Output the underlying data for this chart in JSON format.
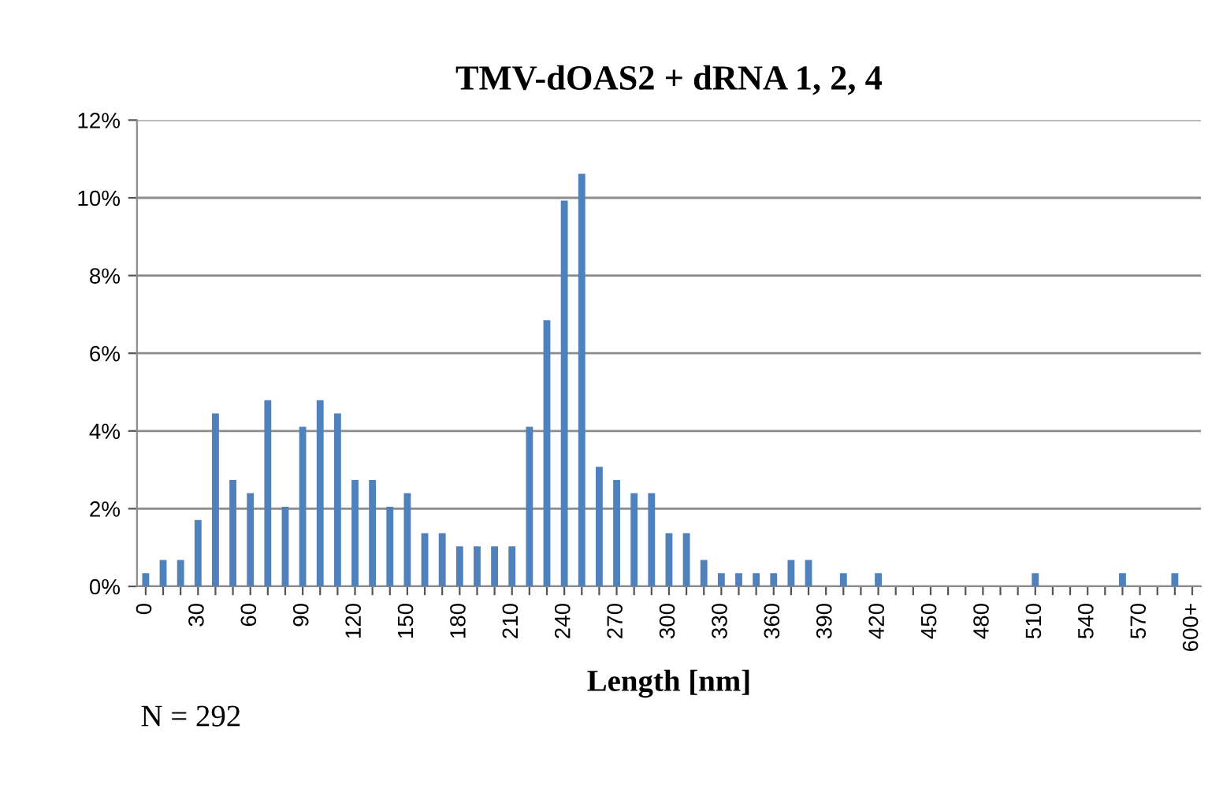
{
  "chart_data": {
    "type": "bar",
    "title": "TMV-dOAS2 + dRNA 1, 2, 4",
    "xlabel": "Length [nm]",
    "annotations": [
      "N = 292"
    ],
    "categories": [
      "0",
      null,
      null,
      "30",
      null,
      null,
      "60",
      null,
      null,
      "90",
      null,
      null,
      "120",
      null,
      null,
      "150",
      null,
      null,
      "180",
      null,
      null,
      "210",
      null,
      null,
      "240",
      null,
      null,
      "270",
      null,
      null,
      "300",
      null,
      null,
      "330",
      null,
      null,
      "360",
      null,
      null,
      "390",
      null,
      null,
      "420",
      null,
      null,
      "450",
      null,
      null,
      "480",
      null,
      null,
      "510",
      null,
      null,
      "540",
      null,
      null,
      "570",
      null,
      null,
      "600+"
    ],
    "values": [
      0.34,
      0.68,
      0.68,
      1.71,
      4.45,
      2.74,
      2.4,
      4.79,
      2.05,
      4.11,
      4.79,
      4.45,
      2.74,
      2.74,
      2.05,
      2.4,
      1.37,
      1.37,
      1.03,
      1.03,
      1.03,
      1.03,
      4.11,
      6.85,
      9.93,
      10.62,
      3.08,
      2.74,
      2.4,
      2.4,
      1.37,
      1.37,
      0.68,
      0.34,
      0.34,
      0.34,
      0.34,
      0.68,
      0.68,
      0,
      0.34,
      0,
      0.34,
      0,
      0,
      0,
      0,
      0,
      0,
      0,
      0,
      0.34,
      0,
      0,
      0,
      0,
      0.34,
      0,
      0,
      0.34,
      null
    ],
    "color": "#4f81bd",
    "ylim": [
      0,
      12
    ],
    "yticks": [
      {
        "value": 0,
        "label": "0%"
      },
      {
        "value": 2,
        "label": "2%"
      },
      {
        "value": 4,
        "label": "4%"
      },
      {
        "value": 6,
        "label": "6%"
      },
      {
        "value": 8,
        "label": "8%"
      },
      {
        "value": 10,
        "label": "10%"
      },
      {
        "value": 12,
        "label": "12%"
      }
    ],
    "grid": "y",
    "legend": false
  }
}
